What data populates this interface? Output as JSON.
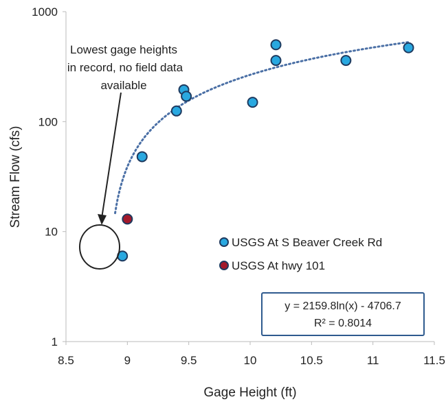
{
  "chart_data": {
    "type": "scatter",
    "xlabel": "Gage Height (ft)",
    "ylabel": "Stream Flow (cfs)",
    "xlim": [
      8.5,
      11.5
    ],
    "ylim": [
      1,
      1000
    ],
    "yscale": "log",
    "x_ticks": [
      "8.5",
      "9",
      "9.5",
      "10",
      "10.5",
      "11",
      "11.5"
    ],
    "y_ticks": [
      "1",
      "10",
      "100",
      "1000"
    ],
    "grid": false,
    "legend_position": "right",
    "series": [
      {
        "name": "USGS At S Beaver Creek Rd",
        "color": "#29a8e0",
        "points": [
          {
            "x": 8.96,
            "y": 6
          },
          {
            "x": 9.12,
            "y": 48
          },
          {
            "x": 9.4,
            "y": 125
          },
          {
            "x": 9.46,
            "y": 195
          },
          {
            "x": 9.48,
            "y": 170
          },
          {
            "x": 10.02,
            "y": 150
          },
          {
            "x": 10.21,
            "y": 500
          },
          {
            "x": 10.21,
            "y": 360
          },
          {
            "x": 10.78,
            "y": 360
          },
          {
            "x": 11.29,
            "y": 470
          }
        ]
      },
      {
        "name": "USGS At hwy 101",
        "color": "#a3192b",
        "points": [
          {
            "x": 9.0,
            "y": 13
          }
        ]
      }
    ],
    "trendline": {
      "type": "logarithmic",
      "color": "#4a6fa5",
      "x_range": [
        8.9,
        11.3
      ],
      "equation": "y = 2159.8ln(x) - 4706.7",
      "r_squared": "R² = 0.8014"
    },
    "annotation": {
      "lines": [
        "Lowest gage heights",
        "in record, no field data",
        "available"
      ]
    }
  }
}
